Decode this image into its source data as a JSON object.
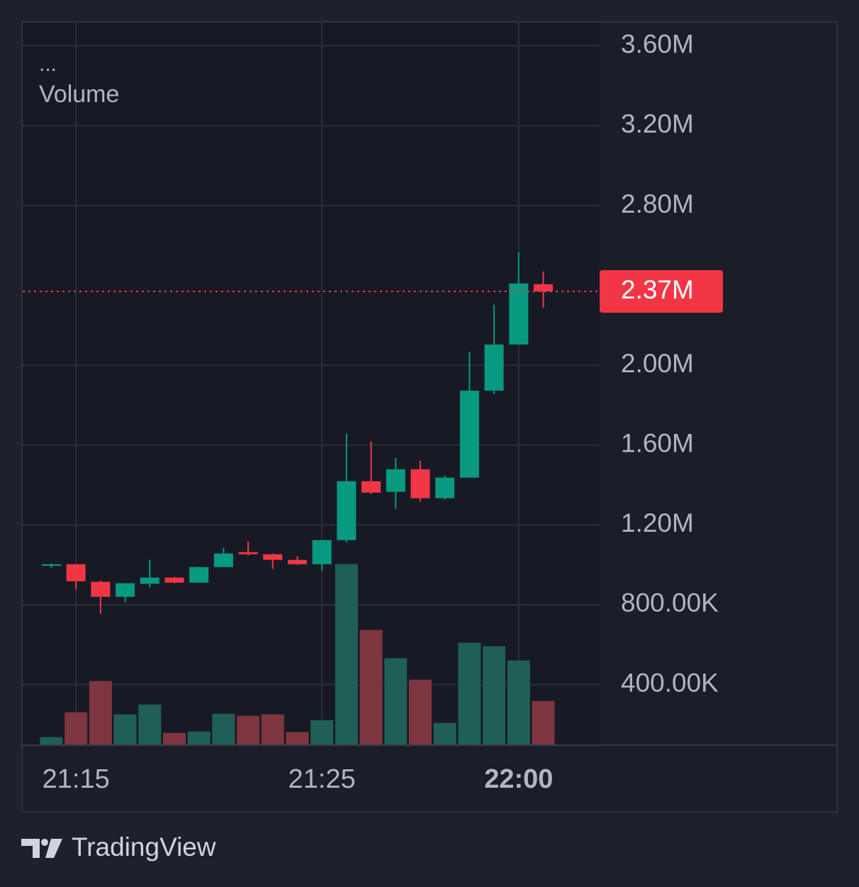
{
  "chart_data": {
    "type": "candlestick",
    "title": "Volume",
    "menu": "...",
    "brand": "TradingView",
    "categories": [
      null,
      "21:15",
      null,
      null,
      null,
      null,
      null,
      null,
      null,
      null,
      null,
      "21:25",
      null,
      null,
      null,
      null,
      null,
      null,
      null,
      "22:00",
      null
    ],
    "open": [
      995000,
      1003000,
      915000,
      840000,
      905000,
      936000,
      911000,
      989000,
      1064000,
      1053000,
      1025000,
      1003000,
      1124000,
      1419000,
      1366000,
      1479000,
      1334000,
      1437000,
      1873000,
      2104000,
      2406000
    ],
    "high": [
      1007000,
      1003000,
      922000,
      908000,
      1025000,
      940000,
      990000,
      1085000,
      1117000,
      1057000,
      1043000,
      1124000,
      1657000,
      1618000,
      1536000,
      1522000,
      1447000,
      2068000,
      2303000,
      2566000,
      2470000
    ],
    "low": [
      985000,
      876000,
      755000,
      812000,
      886000,
      908000,
      911000,
      989000,
      1046000,
      979000,
      1000000,
      972000,
      1113000,
      1355000,
      1281000,
      1316000,
      1327000,
      1437000,
      1856000,
      2104000,
      2289000
    ],
    "close": [
      1003000,
      918000,
      840000,
      908000,
      936000,
      911000,
      989000,
      1057000,
      1053000,
      1025000,
      1003000,
      1124000,
      1419000,
      1362000,
      1479000,
      1334000,
      1437000,
      1873000,
      2104000,
      2410000,
      2370000
    ],
    "volume": [
      137000,
      261000,
      418000,
      251000,
      300000,
      158000,
      165000,
      254000,
      244000,
      251000,
      162000,
      222000,
      1004000,
      674000,
      532000,
      425000,
      208000,
      610000,
      592000,
      521000,
      318000
    ],
    "up_color": "#089981",
    "down_color": "#f23645",
    "volume_up_color": "#1f5f57",
    "volume_down_color": "#7d3540",
    "last_price": {
      "value": 2370000,
      "label": "2.37M"
    },
    "ylim": [
      100000,
      3720000
    ],
    "yticks": [
      {
        "value": 400000,
        "label": "400.00K"
      },
      {
        "value": 800000,
        "label": "800.00K"
      },
      {
        "value": 1200000,
        "label": "1.20M"
      },
      {
        "value": 1600000,
        "label": "1.60M"
      },
      {
        "value": 2000000,
        "label": "2.00M"
      },
      {
        "value": 2800000,
        "label": "2.80M"
      },
      {
        "value": 3200000,
        "label": "3.20M"
      },
      {
        "value": 3600000,
        "label": "3.60M"
      }
    ],
    "grid": true
  }
}
